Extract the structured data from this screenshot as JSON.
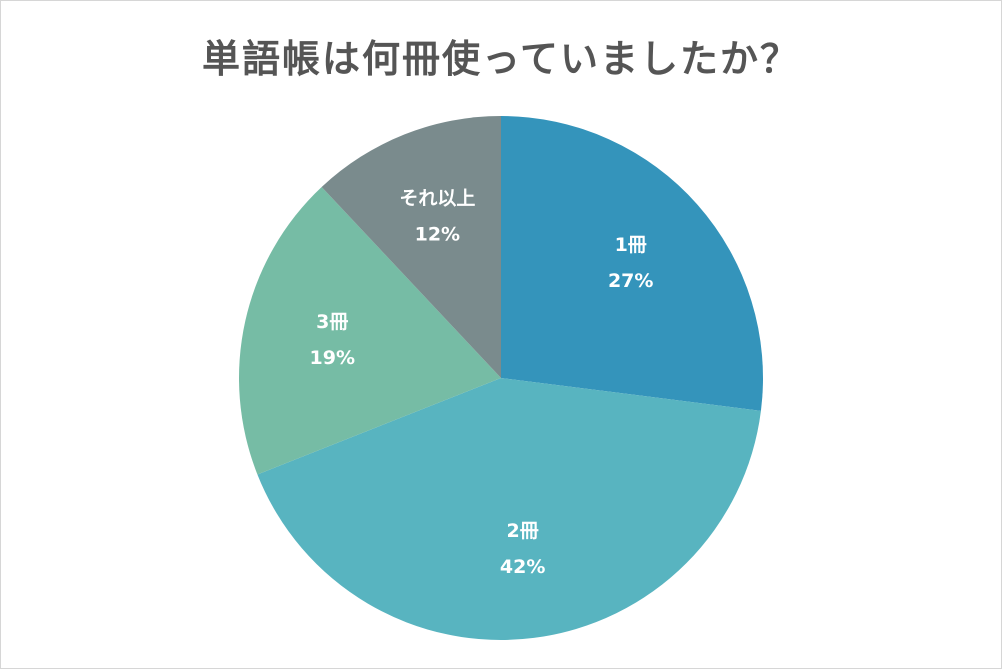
{
  "chart_data": {
    "type": "pie",
    "title": "単語帳は何冊使っていましたか？",
    "categories": [
      "1冊",
      "2冊",
      "3冊",
      "それ以上"
    ],
    "values": [
      27,
      42,
      19,
      12
    ],
    "value_labels": [
      "27%",
      "42%",
      "19%",
      "12%"
    ],
    "colors": [
      "#3494bb",
      "#58b4c0",
      "#76bca5",
      "#7a8b8d"
    ],
    "start_direction": "top",
    "order": "clockwise",
    "legend": "none"
  }
}
